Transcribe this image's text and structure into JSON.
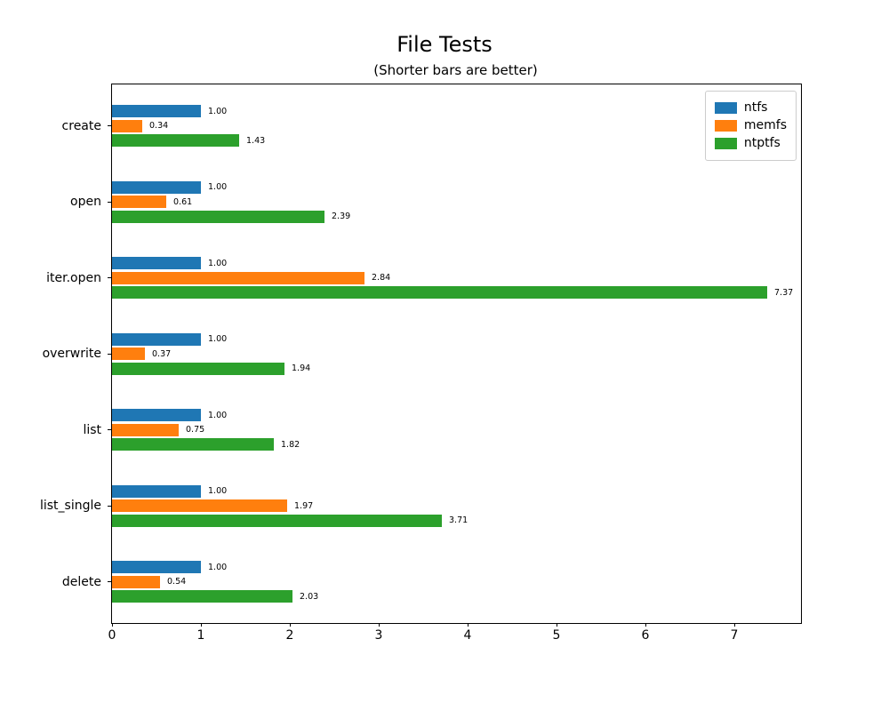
{
  "chart_data": {
    "type": "bar",
    "orientation": "horizontal",
    "title": "File Tests",
    "subtitle": "(Shorter bars are better)",
    "categories": [
      "create",
      "open",
      "iter.open",
      "overwrite",
      "list",
      "list_single",
      "delete"
    ],
    "series": [
      {
        "name": "ntfs",
        "color": "#1f77b4",
        "values": [
          1.0,
          1.0,
          1.0,
          1.0,
          1.0,
          1.0,
          1.0
        ]
      },
      {
        "name": "memfs",
        "color": "#ff7f0e",
        "values": [
          0.34,
          0.61,
          2.84,
          0.37,
          0.75,
          1.97,
          0.54
        ]
      },
      {
        "name": "ntptfs",
        "color": "#2ca02c",
        "values": [
          1.43,
          2.39,
          7.37,
          1.94,
          1.82,
          3.71,
          2.03
        ]
      }
    ],
    "value_label_format": "2-decimals",
    "x_ticks": [
      0,
      1,
      2,
      3,
      4,
      5,
      6,
      7
    ],
    "xlim": [
      0,
      7.75
    ],
    "grid": false,
    "legend_position": "upper right",
    "background_color": "#ffffff",
    "text_color": "#000000"
  }
}
